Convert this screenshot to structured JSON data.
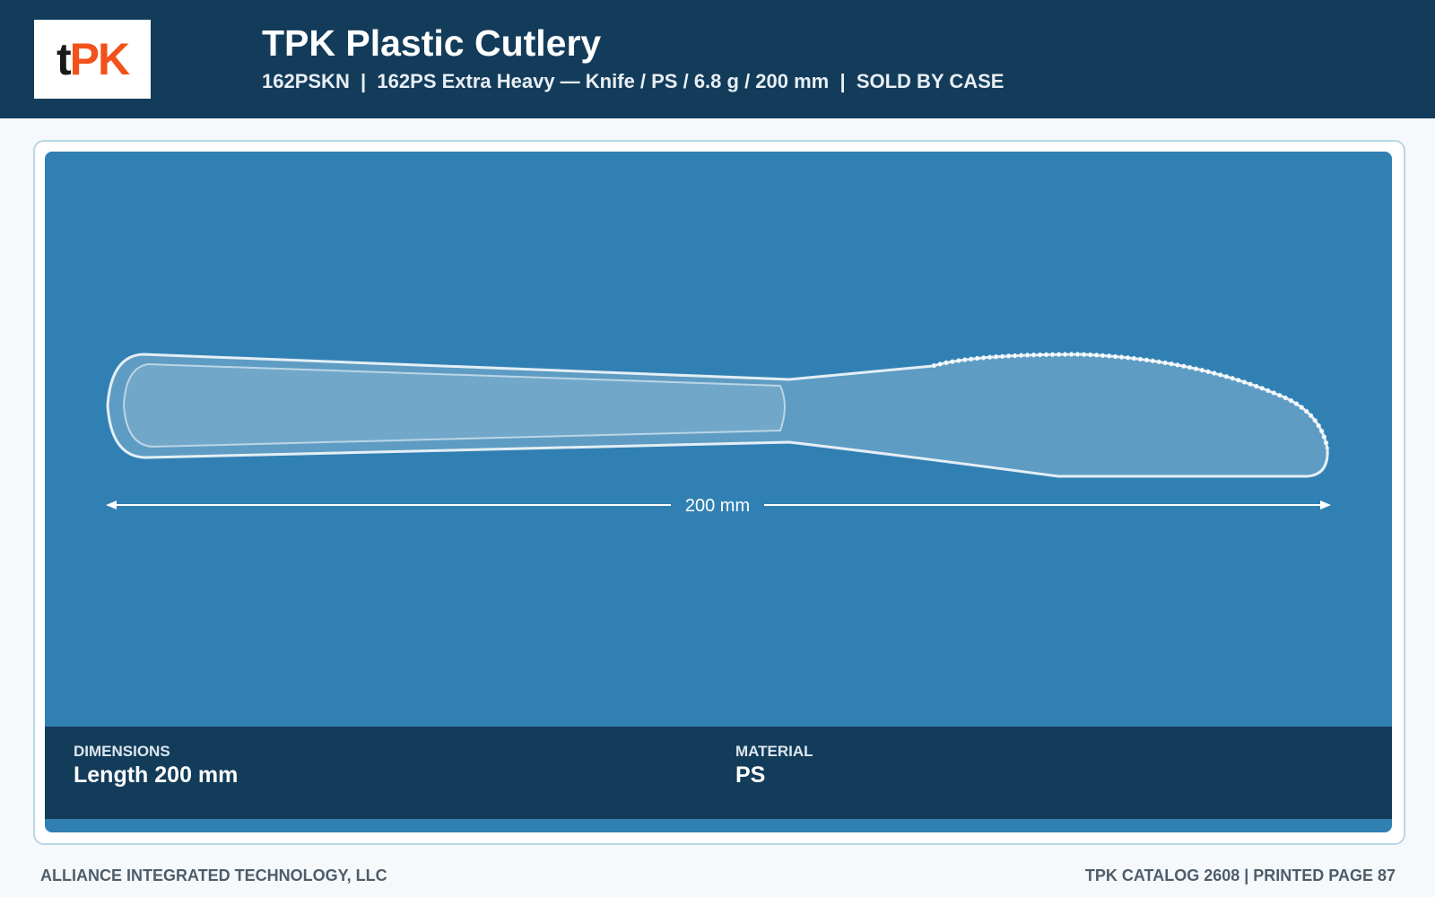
{
  "header": {
    "logo": [
      "t",
      "PK"
    ],
    "title": "TPK Plastic Cutlery",
    "subtitle": "162PSKN  |  162PS Extra Heavy — Knife / PS / 6.8 g / 200 mm  |  SOLD BY CASE"
  },
  "product": {
    "dimension_label": "200 mm"
  },
  "specs": [
    {
      "label": "DIMENSIONS",
      "value": "Length 200 mm"
    },
    {
      "label": "MATERIAL",
      "value": "PS"
    }
  ],
  "footer": {
    "left": "ALLIANCE INTEGRATED TECHNOLOGY, LLC",
    "right": "TPK CATALOG 2608 | PRINTED PAGE 87"
  }
}
